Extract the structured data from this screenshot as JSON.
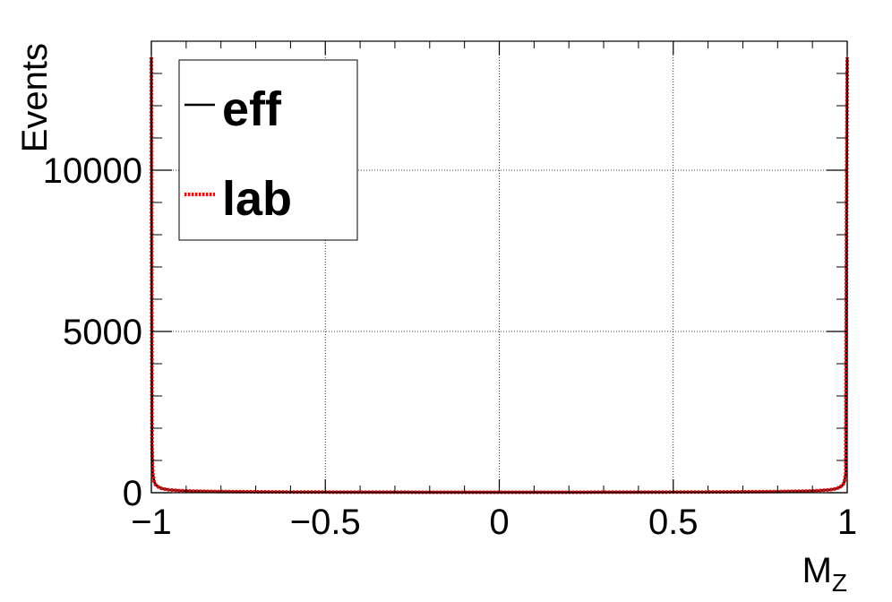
{
  "chart_data": {
    "type": "line",
    "xlabel": "M",
    "xlabel_subscript": "Z",
    "ylabel": "Events",
    "xlim": [
      -1,
      1
    ],
    "ylim": [
      0,
      14000
    ],
    "x_ticks": [
      "−1",
      "−0.5",
      "0",
      "0.5",
      "1"
    ],
    "y_ticks": [
      "0",
      "5000",
      "10000"
    ],
    "grid": true,
    "legend_position": "top-left",
    "series": [
      {
        "name": "eff",
        "color": "#000000",
        "style": "solid",
        "points": [
          [
            -1.0,
            13500
          ],
          [
            -0.998,
            1500
          ],
          [
            -0.996,
            600
          ],
          [
            -0.992,
            350
          ],
          [
            -0.988,
            250
          ],
          [
            -0.98,
            180
          ],
          [
            -0.97,
            130
          ],
          [
            -0.95,
            90
          ],
          [
            -0.92,
            65
          ],
          [
            -0.88,
            50
          ],
          [
            -0.8,
            35
          ],
          [
            -0.6,
            22
          ],
          [
            -0.4,
            17
          ],
          [
            -0.2,
            15
          ],
          [
            0.0,
            14
          ],
          [
            0.2,
            15
          ],
          [
            0.4,
            17
          ],
          [
            0.6,
            22
          ],
          [
            0.8,
            35
          ],
          [
            0.88,
            50
          ],
          [
            0.92,
            65
          ],
          [
            0.95,
            90
          ],
          [
            0.97,
            130
          ],
          [
            0.98,
            180
          ],
          [
            0.988,
            250
          ],
          [
            0.992,
            350
          ],
          [
            0.996,
            600
          ],
          [
            0.998,
            8500
          ],
          [
            1.0,
            13500
          ]
        ]
      },
      {
        "name": "lab",
        "color": "#ff0000",
        "style": "dotted",
        "points": [
          [
            -1.0,
            13500
          ],
          [
            -0.998,
            1500
          ],
          [
            -0.996,
            600
          ],
          [
            -0.992,
            350
          ],
          [
            -0.988,
            250
          ],
          [
            -0.98,
            180
          ],
          [
            -0.97,
            130
          ],
          [
            -0.95,
            90
          ],
          [
            -0.92,
            65
          ],
          [
            -0.88,
            50
          ],
          [
            -0.8,
            35
          ],
          [
            -0.6,
            22
          ],
          [
            -0.4,
            17
          ],
          [
            -0.2,
            15
          ],
          [
            0.0,
            14
          ],
          [
            0.2,
            15
          ],
          [
            0.4,
            17
          ],
          [
            0.6,
            22
          ],
          [
            0.8,
            35
          ],
          [
            0.88,
            50
          ],
          [
            0.92,
            65
          ],
          [
            0.95,
            90
          ],
          [
            0.97,
            130
          ],
          [
            0.98,
            180
          ],
          [
            0.988,
            250
          ],
          [
            0.992,
            350
          ],
          [
            0.996,
            600
          ],
          [
            0.998,
            8500
          ],
          [
            1.0,
            13500
          ]
        ]
      }
    ]
  }
}
